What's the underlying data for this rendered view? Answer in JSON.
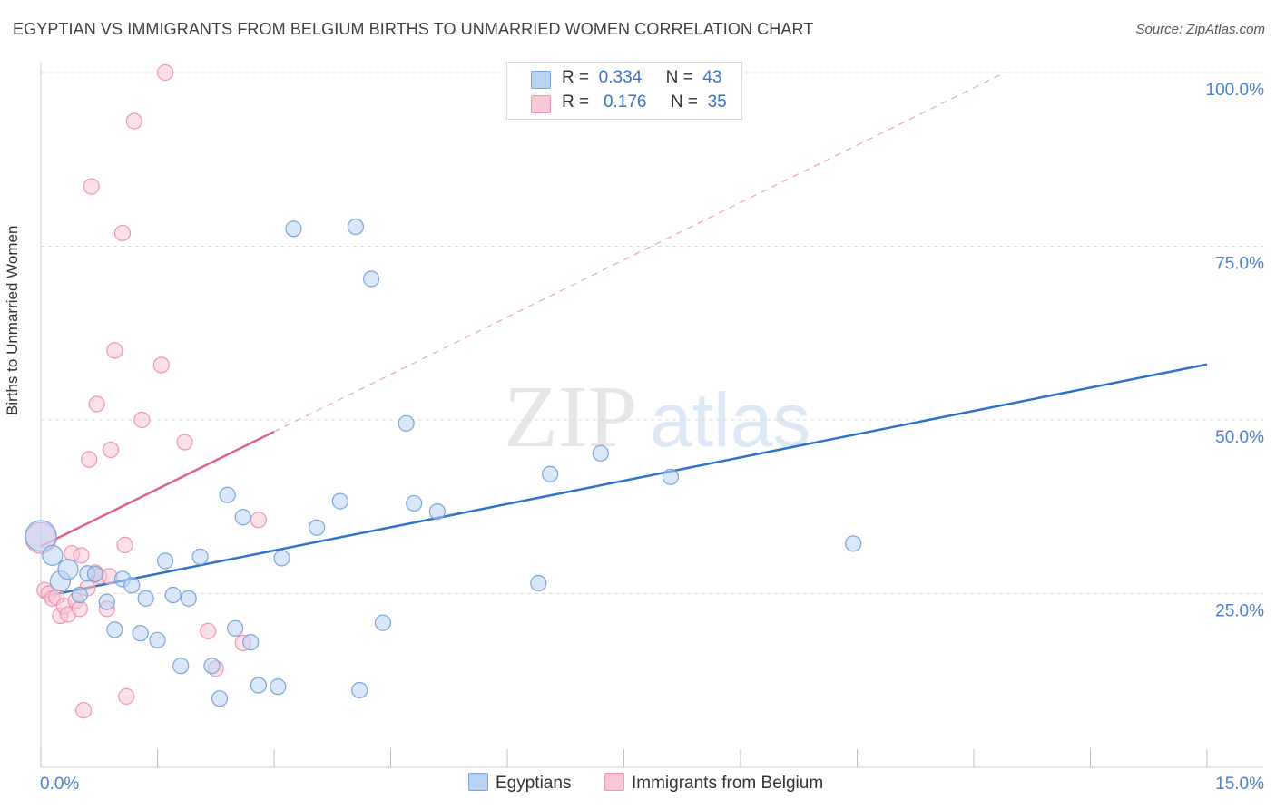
{
  "title": "EGYPTIAN VS IMMIGRANTS FROM BELGIUM BIRTHS TO UNMARRIED WOMEN CORRELATION CHART",
  "source": "Source: ZipAtlas.com",
  "watermark": {
    "zip": "ZIP",
    "atlas": "atlas"
  },
  "legend": {
    "r_label": "R =",
    "n_label": "N =",
    "egyptians": {
      "r": "0.334",
      "n": "43"
    },
    "belgium": {
      "r": "0.176",
      "n": "35"
    }
  },
  "colors": {
    "blue_fill": "#b9d3f3",
    "blue_stroke": "#7aa5db",
    "blue_line": "#2f72c9",
    "pink_fill": "#f9c7d6",
    "pink_stroke": "#ee95b1",
    "pink_line": "#e0618b",
    "tick_label": "#4a80cf"
  },
  "chart_data": {
    "type": "scatter",
    "title": "EGYPTIAN VS IMMIGRANTS FROM BELGIUM BIRTHS TO UNMARRIED WOMEN CORRELATION CHART",
    "xlabel": "",
    "ylabel": "Births to Unmarried Women",
    "xlim": [
      0,
      15
    ],
    "ylim": [
      0,
      100
    ],
    "x_tick_labels": [
      "0.0%",
      "15.0%"
    ],
    "y_ticks": [
      25,
      50,
      75,
      100
    ],
    "y_tick_labels": [
      "25.0%",
      "50.0%",
      "75.0%",
      "100.0%"
    ],
    "grid": true,
    "legend_position": "top-center",
    "series": [
      {
        "name": "Egyptians",
        "r": 0.334,
        "n": 43,
        "trend": {
          "x": [
            0,
            15
          ],
          "y": [
            24.5,
            58.0
          ],
          "style": "solid"
        },
        "points": [
          {
            "x": 0.0,
            "y": 33.3,
            "size": "large"
          },
          {
            "x": 0.15,
            "y": 30.5,
            "size": "medium"
          },
          {
            "x": 0.25,
            "y": 26.8,
            "size": "medium"
          },
          {
            "x": 0.35,
            "y": 28.5,
            "size": "medium"
          },
          {
            "x": 0.5,
            "y": 24.8
          },
          {
            "x": 0.6,
            "y": 27.9
          },
          {
            "x": 0.7,
            "y": 27.8
          },
          {
            "x": 0.85,
            "y": 23.8
          },
          {
            "x": 0.95,
            "y": 19.8
          },
          {
            "x": 1.05,
            "y": 27.1
          },
          {
            "x": 1.17,
            "y": 26.2
          },
          {
            "x": 1.28,
            "y": 19.3
          },
          {
            "x": 1.35,
            "y": 24.3
          },
          {
            "x": 1.5,
            "y": 18.3
          },
          {
            "x": 1.6,
            "y": 29.7
          },
          {
            "x": 1.7,
            "y": 24.8
          },
          {
            "x": 1.8,
            "y": 14.6
          },
          {
            "x": 1.9,
            "y": 24.3
          },
          {
            "x": 2.05,
            "y": 30.3
          },
          {
            "x": 2.2,
            "y": 14.6
          },
          {
            "x": 2.3,
            "y": 9.9
          },
          {
            "x": 2.4,
            "y": 39.2
          },
          {
            "x": 2.5,
            "y": 20.0
          },
          {
            "x": 2.6,
            "y": 36.0
          },
          {
            "x": 2.7,
            "y": 18.0
          },
          {
            "x": 2.8,
            "y": 11.8
          },
          {
            "x": 3.05,
            "y": 11.6
          },
          {
            "x": 3.1,
            "y": 30.1
          },
          {
            "x": 3.25,
            "y": 77.5
          },
          {
            "x": 3.55,
            "y": 34.5
          },
          {
            "x": 3.85,
            "y": 38.3
          },
          {
            "x": 4.05,
            "y": 77.8
          },
          {
            "x": 4.1,
            "y": 11.1
          },
          {
            "x": 4.25,
            "y": 70.3
          },
          {
            "x": 4.4,
            "y": 20.8
          },
          {
            "x": 4.7,
            "y": 49.5
          },
          {
            "x": 4.8,
            "y": 38.0
          },
          {
            "x": 5.1,
            "y": 36.8
          },
          {
            "x": 6.4,
            "y": 26.5
          },
          {
            "x": 6.55,
            "y": 42.2
          },
          {
            "x": 7.2,
            "y": 45.2
          },
          {
            "x": 8.1,
            "y": 41.8
          },
          {
            "x": 10.45,
            "y": 32.2
          }
        ]
      },
      {
        "name": "Immigrants from Belgium",
        "r": 0.176,
        "n": 35,
        "trend": {
          "x": [
            0,
            3.0
          ],
          "y": [
            31.8,
            48.3
          ],
          "style": "solid",
          "extension": {
            "x": [
              3.0,
              12.4
            ],
            "y": [
              48.3,
              100.0
            ],
            "style": "dashed"
          }
        },
        "points": [
          {
            "x": 0.0,
            "y": 33.0,
            "size": "large"
          },
          {
            "x": 0.05,
            "y": 25.5
          },
          {
            "x": 0.1,
            "y": 25.0
          },
          {
            "x": 0.15,
            "y": 24.3
          },
          {
            "x": 0.2,
            "y": 24.5
          },
          {
            "x": 0.25,
            "y": 21.8
          },
          {
            "x": 0.3,
            "y": 23.2
          },
          {
            "x": 0.35,
            "y": 22.0
          },
          {
            "x": 0.4,
            "y": 30.8
          },
          {
            "x": 0.45,
            "y": 24.0
          },
          {
            "x": 0.5,
            "y": 22.8
          },
          {
            "x": 0.52,
            "y": 30.5
          },
          {
            "x": 0.55,
            "y": 8.2
          },
          {
            "x": 0.6,
            "y": 25.8
          },
          {
            "x": 0.62,
            "y": 44.3
          },
          {
            "x": 0.65,
            "y": 83.6
          },
          {
            "x": 0.7,
            "y": 28.0
          },
          {
            "x": 0.75,
            "y": 27.5
          },
          {
            "x": 0.72,
            "y": 52.3
          },
          {
            "x": 0.85,
            "y": 22.8
          },
          {
            "x": 0.88,
            "y": 27.5
          },
          {
            "x": 0.9,
            "y": 45.7
          },
          {
            "x": 0.95,
            "y": 60.0
          },
          {
            "x": 1.05,
            "y": 76.9
          },
          {
            "x": 1.08,
            "y": 32.0
          },
          {
            "x": 1.1,
            "y": 10.2
          },
          {
            "x": 1.2,
            "y": 93.0
          },
          {
            "x": 1.3,
            "y": 50.0
          },
          {
            "x": 1.55,
            "y": 57.9
          },
          {
            "x": 1.6,
            "y": 100.0
          },
          {
            "x": 1.85,
            "y": 46.8
          },
          {
            "x": 2.15,
            "y": 19.6
          },
          {
            "x": 2.25,
            "y": 14.2
          },
          {
            "x": 2.6,
            "y": 17.9
          },
          {
            "x": 2.8,
            "y": 35.6
          }
        ]
      }
    ]
  }
}
